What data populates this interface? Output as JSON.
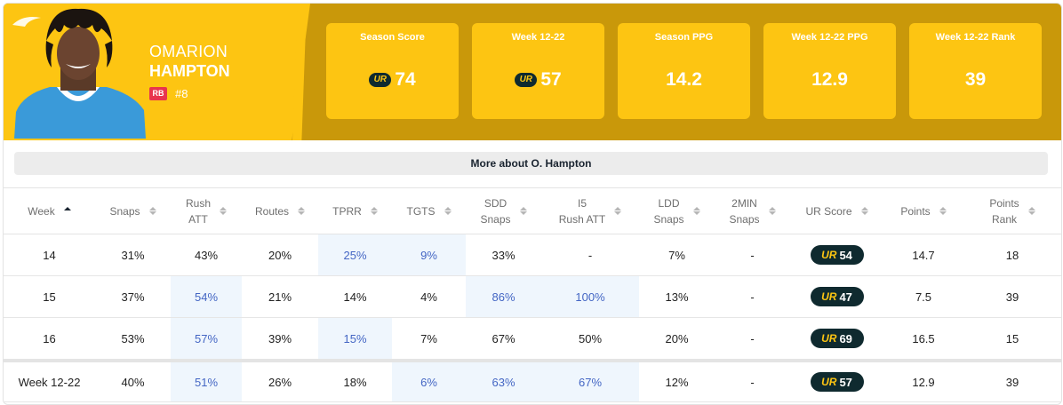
{
  "player": {
    "first_name": "OMARION",
    "last_name": "HAMPTON",
    "position": "RB",
    "jersey": "#8"
  },
  "stats": [
    {
      "label": "Season Score",
      "value": "74",
      "has_ur": true
    },
    {
      "label": "Week 12-22",
      "value": "57",
      "has_ur": true
    },
    {
      "label": "Season PPG",
      "value": "14.2",
      "has_ur": false
    },
    {
      "label": "Week 12-22 PPG",
      "value": "12.9",
      "has_ur": false
    },
    {
      "label": "Week 12-22 Rank",
      "value": "39",
      "has_ur": false
    }
  ],
  "ur_logo": "UR",
  "more_label": "More about O. Hampton",
  "table": {
    "headers": [
      {
        "l1": "Week",
        "l2": "",
        "sort": "asc"
      },
      {
        "l1": "Snaps",
        "l2": "",
        "sort": "none"
      },
      {
        "l1": "Rush",
        "l2": "ATT",
        "sort": "none"
      },
      {
        "l1": "Routes",
        "l2": "",
        "sort": "none"
      },
      {
        "l1": "TPRR",
        "l2": "",
        "sort": "none"
      },
      {
        "l1": "TGTS",
        "l2": "",
        "sort": "none"
      },
      {
        "l1": "SDD",
        "l2": "Snaps",
        "sort": "none"
      },
      {
        "l1": "I5",
        "l2": "Rush ATT",
        "sort": "none"
      },
      {
        "l1": "LDD",
        "l2": "Snaps",
        "sort": "none"
      },
      {
        "l1": "2MIN",
        "l2": "Snaps",
        "sort": "none"
      },
      {
        "l1": "UR Score",
        "l2": "",
        "sort": "none"
      },
      {
        "l1": "Points",
        "l2": "",
        "sort": "none"
      },
      {
        "l1": "Points",
        "l2": "Rank",
        "sort": "none"
      }
    ],
    "rows": [
      {
        "cells": [
          "14",
          "31%",
          "43%",
          "20%",
          "25%",
          "9%",
          "33%",
          "-",
          "7%",
          "-",
          "54",
          "14.7",
          "18"
        ],
        "hl": [
          4,
          5
        ]
      },
      {
        "cells": [
          "15",
          "37%",
          "54%",
          "21%",
          "14%",
          "4%",
          "86%",
          "100%",
          "13%",
          "-",
          "47",
          "7.5",
          "39"
        ],
        "hl": [
          2,
          6,
          7
        ]
      },
      {
        "cells": [
          "16",
          "53%",
          "57%",
          "39%",
          "15%",
          "7%",
          "67%",
          "50%",
          "20%",
          "-",
          "69",
          "16.5",
          "15"
        ],
        "hl": [
          2,
          4
        ]
      }
    ],
    "summary": {
      "cells": [
        "Week 12-22",
        "40%",
        "51%",
        "26%",
        "18%",
        "6%",
        "63%",
        "67%",
        "12%",
        "-",
        "57",
        "12.9",
        "39"
      ],
      "hl": [
        2,
        5,
        6,
        7
      ]
    }
  },
  "colors": {
    "gold": "#fdc512",
    "gold_dark": "#c9980a",
    "navy": "#0f2a2f",
    "highlight_bg": "#eff6fd",
    "highlight_text": "#4466c4",
    "position_badge": "#e8344e"
  }
}
